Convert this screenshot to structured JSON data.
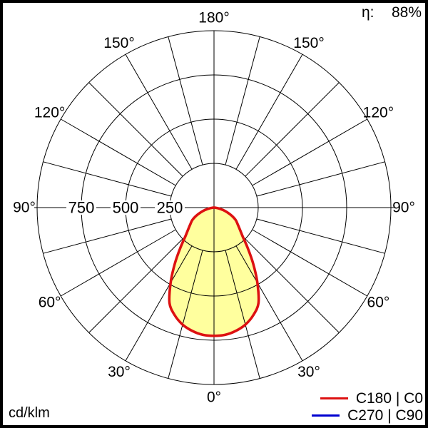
{
  "window": {
    "background": "#ffffff",
    "frame_border_color": "#000000"
  },
  "header": {
    "eta_label": "η:",
    "eta_value": "88%"
  },
  "footer": {
    "unit_label": "cd/klm"
  },
  "legend": {
    "items": [
      {
        "label": "C180 | C0",
        "color": "#dd1111",
        "line_thickness": 3.5
      },
      {
        "label": "C270 | C90",
        "color": "#0000d0",
        "line_thickness": 2.8
      }
    ]
  },
  "chart_data": {
    "type": "line",
    "projection": "polar",
    "zero_direction": "down",
    "unit": "cd/klm",
    "grid": true,
    "grid_color": "#000000",
    "grid_step_deg": 15,
    "angle_axis": {
      "labels": [
        "0°",
        "30°",
        "60°",
        "90°",
        "120°",
        "150°",
        "180°"
      ],
      "label_angles_deg": [
        0,
        30,
        60,
        90,
        120,
        150,
        180
      ]
    },
    "radial_axis": {
      "tick_labels": [
        "250",
        "500",
        "750"
      ],
      "tick_values": [
        250,
        500,
        750
      ],
      "max": 1000
    },
    "gamma_deg": [
      0,
      5,
      10,
      15,
      20,
      25,
      30,
      35,
      40,
      45,
      50,
      55,
      60,
      65,
      70,
      75,
      80,
      85,
      90
    ],
    "series": [
      {
        "name": "C180 | C0",
        "color": "#dd1111",
        "stroke_width": 3.6,
        "fill": "#ffff9e",
        "mirrored": true,
        "values": [
          725,
          722,
          708,
          685,
          648,
          595,
          490,
          385,
          295,
          228,
          190,
          163,
          142,
          112,
          82,
          52,
          26,
          8,
          0
        ]
      },
      {
        "name": "C270 | C90",
        "color": "#0000d0",
        "stroke_width": 2.8,
        "fill": null,
        "mirrored": true,
        "values": [
          725,
          722,
          708,
          685,
          648,
          595,
          490,
          385,
          295,
          228,
          190,
          163,
          142,
          112,
          82,
          52,
          26,
          8,
          0
        ]
      }
    ]
  }
}
